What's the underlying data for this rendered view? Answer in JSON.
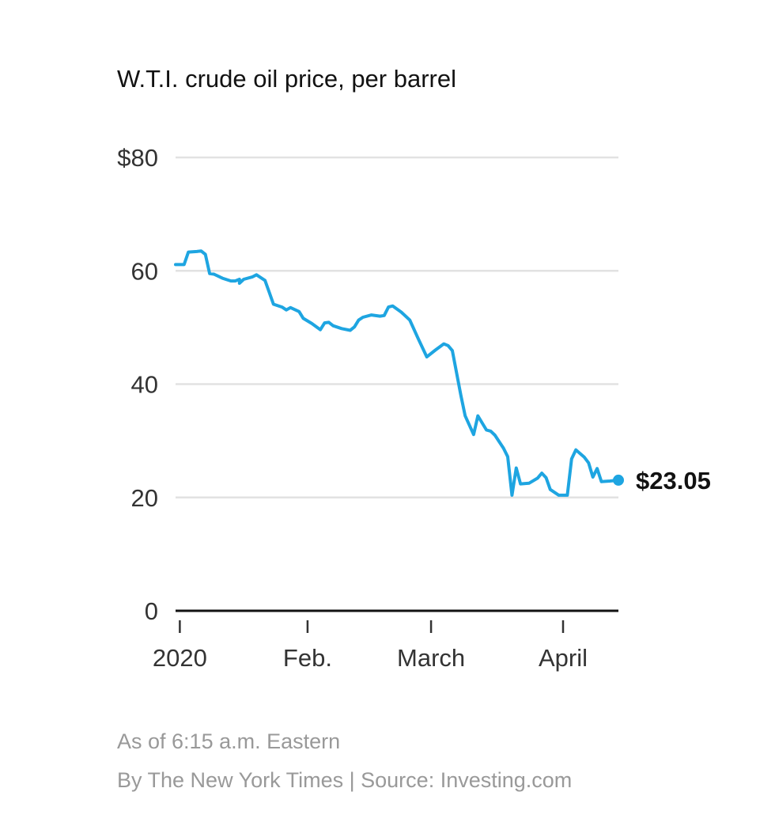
{
  "chart_data": {
    "type": "line",
    "title": "W.T.I. crude oil price, per barrel",
    "xlabel": "",
    "ylabel": "",
    "ylim": [
      0,
      80
    ],
    "xlim": [
      "2020-01-01",
      "2020-04-14"
    ],
    "grid": true,
    "y_ticks": [
      {
        "value": 80,
        "label": "$80"
      },
      {
        "value": 60,
        "label": "60"
      },
      {
        "value": 40,
        "label": "40"
      },
      {
        "value": 20,
        "label": "20"
      },
      {
        "value": 0,
        "label": "0"
      }
    ],
    "x_ticks": [
      {
        "date": "2020-01-02",
        "label": "2020"
      },
      {
        "date": "2020-02-01",
        "label": "Feb."
      },
      {
        "date": "2020-03-01",
        "label": "March"
      },
      {
        "date": "2020-04-01",
        "label": "April"
      }
    ],
    "series": [
      {
        "color": "#1ea5e1",
        "points": [
          [
            "2020-01-01",
            61.1
          ],
          [
            "2020-01-03",
            61.1
          ],
          [
            "2020-01-04",
            63.3
          ],
          [
            "2020-01-06",
            63.4
          ],
          [
            "2020-01-07",
            63.5
          ],
          [
            "2020-01-08",
            62.9
          ],
          [
            "2020-01-09",
            59.5
          ],
          [
            "2020-01-10",
            59.4
          ],
          [
            "2020-01-12",
            58.7
          ],
          [
            "2020-01-14",
            58.2
          ],
          [
            "2020-01-15",
            58.2
          ],
          [
            "2020-01-16",
            58.5
          ],
          [
            "2020-01-16",
            57.8
          ],
          [
            "2020-01-17",
            58.5
          ],
          [
            "2020-01-19",
            58.9
          ],
          [
            "2020-01-20",
            59.3
          ],
          [
            "2020-01-22",
            58.3
          ],
          [
            "2020-01-23",
            56.2
          ],
          [
            "2020-01-24",
            54.1
          ],
          [
            "2020-01-26",
            53.6
          ],
          [
            "2020-01-27",
            53.1
          ],
          [
            "2020-01-28",
            53.5
          ],
          [
            "2020-01-30",
            52.8
          ],
          [
            "2020-01-31",
            51.6
          ],
          [
            "2020-02-02",
            50.7
          ],
          [
            "2020-02-04",
            49.6
          ],
          [
            "2020-02-05",
            50.8
          ],
          [
            "2020-02-06",
            50.9
          ],
          [
            "2020-02-07",
            50.3
          ],
          [
            "2020-02-09",
            49.8
          ],
          [
            "2020-02-11",
            49.5
          ],
          [
            "2020-02-12",
            50.1
          ],
          [
            "2020-02-13",
            51.3
          ],
          [
            "2020-02-14",
            51.8
          ],
          [
            "2020-02-16",
            52.2
          ],
          [
            "2020-02-18",
            52.0
          ],
          [
            "2020-02-19",
            52.1
          ],
          [
            "2020-02-20",
            53.6
          ],
          [
            "2020-02-21",
            53.8
          ],
          [
            "2020-02-23",
            52.7
          ],
          [
            "2020-02-25",
            51.3
          ],
          [
            "2020-02-27",
            48.0
          ],
          [
            "2020-02-29",
            44.8
          ],
          [
            "2020-03-02",
            46.0
          ],
          [
            "2020-03-04",
            47.1
          ],
          [
            "2020-03-05",
            46.8
          ],
          [
            "2020-03-06",
            45.9
          ],
          [
            "2020-03-08",
            38.0
          ],
          [
            "2020-03-09",
            34.4
          ],
          [
            "2020-03-11",
            31.1
          ],
          [
            "2020-03-12",
            34.4
          ],
          [
            "2020-03-14",
            31.9
          ],
          [
            "2020-03-15",
            31.7
          ],
          [
            "2020-03-16",
            31.0
          ],
          [
            "2020-03-18",
            28.7
          ],
          [
            "2020-03-19",
            27.2
          ],
          [
            "2020-03-20",
            20.4
          ],
          [
            "2020-03-21",
            25.2
          ],
          [
            "2020-03-22",
            22.4
          ],
          [
            "2020-03-24",
            22.5
          ],
          [
            "2020-03-26",
            23.4
          ],
          [
            "2020-03-27",
            24.3
          ],
          [
            "2020-03-28",
            23.5
          ],
          [
            "2020-03-29",
            21.4
          ],
          [
            "2020-03-31",
            20.4
          ],
          [
            "2020-04-02",
            20.4
          ],
          [
            "2020-04-03",
            26.8
          ],
          [
            "2020-04-04",
            28.4
          ],
          [
            "2020-04-06",
            27.1
          ],
          [
            "2020-04-07",
            26.1
          ],
          [
            "2020-04-08",
            23.6
          ],
          [
            "2020-04-09",
            25.1
          ],
          [
            "2020-04-10",
            22.8
          ],
          [
            "2020-04-12",
            22.9
          ],
          [
            "2020-04-14",
            23.05
          ]
        ]
      }
    ],
    "end_label": "$23.05"
  },
  "footnotes": {
    "as_of": "As of 6:15 a.m. Eastern",
    "credit": "By The New York Times | Source: Investing.com"
  }
}
